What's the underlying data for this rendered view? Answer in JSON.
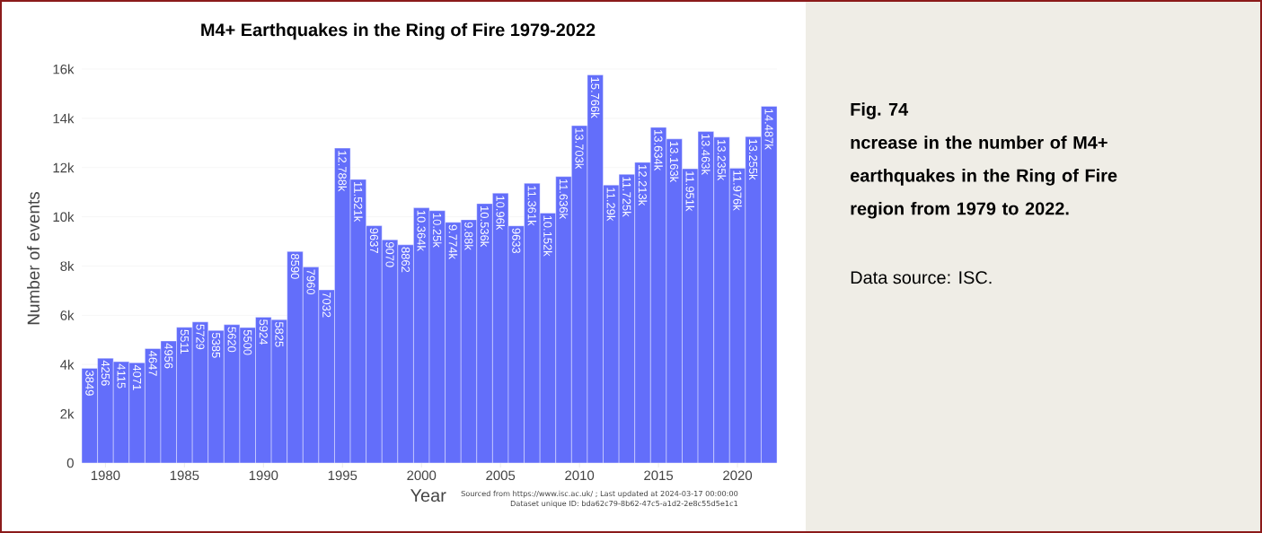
{
  "chart_data": {
    "type": "bar",
    "title": "M4+ Earthquakes in the Ring of Fire 1979-2022",
    "xlabel": "Year",
    "ylabel": "Number of events",
    "x": [
      1979,
      1980,
      1981,
      1982,
      1983,
      1984,
      1985,
      1986,
      1987,
      1988,
      1989,
      1990,
      1991,
      1992,
      1993,
      1994,
      1995,
      1996,
      1997,
      1998,
      1999,
      2000,
      2001,
      2002,
      2003,
      2004,
      2005,
      2006,
      2007,
      2008,
      2009,
      2010,
      2011,
      2012,
      2013,
      2014,
      2015,
      2016,
      2017,
      2018,
      2019,
      2020,
      2021,
      2022
    ],
    "values": [
      3849,
      4256,
      4115,
      4071,
      4647,
      4956,
      5511,
      5729,
      5385,
      5620,
      5500,
      5924,
      5825,
      8590,
      7960,
      7032,
      12788,
      11521,
      9637,
      9070,
      8862,
      10364,
      10250,
      9774,
      9880,
      10536,
      10960,
      9633,
      11361,
      10152,
      11636,
      13703,
      15766,
      11290,
      11725,
      12213,
      13634,
      13163,
      11951,
      13463,
      13235,
      11976,
      13255,
      14487
    ],
    "value_labels": [
      "3849",
      "4256",
      "4115",
      "4071",
      "4647",
      "4956",
      "5511",
      "5729",
      "5385",
      "5620",
      "5500",
      "5924",
      "5825",
      "8590",
      "7960",
      "7032",
      "12.788k",
      "11.521k",
      "9637",
      "9070",
      "8862",
      "10.364k",
      "10.25k",
      "9.774k",
      "9.88k",
      "10.536k",
      "10.96k",
      "9633",
      "11.361k",
      "10.152k",
      "11.636k",
      "13.703k",
      "15.766k",
      "11.29k",
      "11.725k",
      "12.213k",
      "13.634k",
      "13.163k",
      "11.951k",
      "13.463k",
      "13.235k",
      "11.976k",
      "13.255k",
      "14.487k"
    ],
    "color": "#636efa",
    "xlim": [
      1978.5,
      2022.5
    ],
    "xticks": [
      1980,
      1985,
      1990,
      1995,
      2000,
      2005,
      2010,
      2015,
      2020
    ],
    "ylim": [
      0,
      16000
    ],
    "yticks": [
      0,
      {
        "value": 2000,
        "label": "2k"
      },
      {
        "value": 4000,
        "label": "4k"
      },
      {
        "value": 6000,
        "label": "6k"
      },
      {
        "value": 8000,
        "label": "8k"
      },
      {
        "value": 10000,
        "label": "10k"
      },
      {
        "value": 12000,
        "label": "12k"
      },
      {
        "value": 14000,
        "label": "14k"
      },
      {
        "value": 16000,
        "label": "16k"
      }
    ],
    "grid": "y",
    "annotations": [
      "Sourced from https://www.isc.ac.uk/ ; Last updated at 2024-03-17 00:00:00",
      "Dataset unique ID: bda62c79-8b62-47c5-a1d2-2e8c55d5e1c1",
      "Fig. 74",
      "ncrease in the number of M4+ earthquakes in the Ring of Fire region from 1979 to 2022.",
      "Data source: ISC."
    ]
  }
}
